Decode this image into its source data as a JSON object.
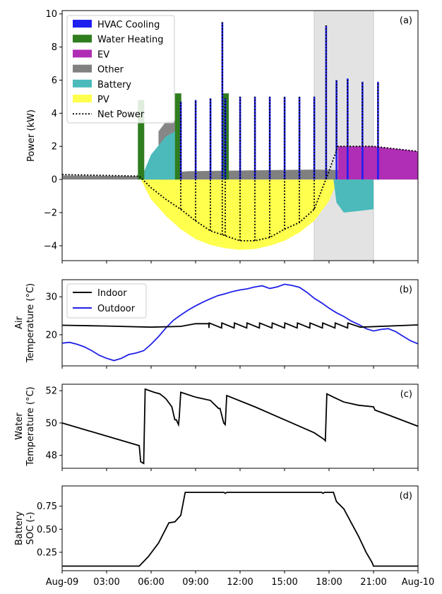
{
  "chart_data": [
    {
      "id": "a",
      "type": "area",
      "panel_label": "(a)",
      "ylabel": "Power (kW)",
      "xlabel": "",
      "xlim": [
        0,
        24
      ],
      "ylim": [
        -4.9,
        10.2
      ],
      "yticks": [
        -4,
        -2,
        0,
        2,
        4,
        6,
        8,
        10
      ],
      "shaded_span": [
        17,
        21
      ],
      "legend": [
        "HVAC Cooling",
        "Water Heating",
        "EV",
        "Other",
        "Battery",
        "PV",
        "Net Power"
      ],
      "colors": {
        "hvac": "#1f1ff0",
        "water": "#2e7d1e",
        "ev": "#b02db5",
        "other": "#808080",
        "battery": "#4cbaba",
        "pv": "#ffff4d",
        "net": "#000000",
        "span": "#e3e3e3"
      },
      "series": [
        {
          "name": "Other",
          "x": [
            0,
            5.25,
            6,
            8.5,
            17,
            24
          ],
          "values": [
            0.25,
            0.2,
            0.3,
            0.5,
            0.6,
            0.5
          ]
        },
        {
          "name": "Battery",
          "x": [
            5.3,
            6,
            7,
            7.8,
            18.3,
            18.5,
            19,
            20,
            21
          ],
          "values": [
            0.0,
            1.5,
            2.6,
            3.0,
            0.0,
            -1.4,
            -2.0,
            -1.9,
            -1.8
          ]
        },
        {
          "name": "PV",
          "x": [
            5.3,
            6,
            7,
            8,
            9,
            10,
            11,
            12,
            13,
            14,
            15,
            16,
            17,
            18,
            18.6
          ],
          "values": [
            0.0,
            -1.2,
            -2.2,
            -3.0,
            -3.6,
            -3.95,
            -4.15,
            -4.25,
            -4.2,
            -4.0,
            -3.7,
            -3.2,
            -2.5,
            -1.3,
            0.0
          ]
        },
        {
          "name": "HVAC Cooling",
          "x": [
            8,
            9,
            10,
            10.8,
            11,
            12,
            13,
            14,
            15,
            16,
            17,
            17.8,
            18.5,
            19.25,
            20.25,
            21.3
          ],
          "values": [
            4.7,
            4.8,
            4.9,
            9.5,
            4.9,
            5.0,
            5.0,
            5.0,
            5.0,
            5.0,
            5.0,
            9.3,
            6.0,
            6.1,
            5.9,
            5.9
          ]
        },
        {
          "name": "Water Heating",
          "x": [
            5.3,
            7.8,
            11.0
          ],
          "values": [
            4.8,
            5.2,
            5.2
          ]
        },
        {
          "name": "EV",
          "x": [
            18.6,
            21,
            22,
            23,
            24
          ],
          "values": [
            2.0,
            2.0,
            1.9,
            1.8,
            1.7
          ]
        },
        {
          "name": "Net Power",
          "x": [
            0,
            5.2,
            6,
            7,
            8,
            9,
            10,
            11,
            12,
            13,
            14,
            15,
            16,
            17,
            18,
            18.6,
            21,
            24
          ],
          "values": [
            0.3,
            0.2,
            -0.5,
            -1.2,
            -1.8,
            -2.5,
            -3.1,
            -3.4,
            -3.7,
            -3.7,
            -3.5,
            -3.0,
            -2.6,
            -1.8,
            0.5,
            2.0,
            2.0,
            1.7
          ]
        }
      ]
    },
    {
      "id": "b",
      "type": "line",
      "panel_label": "(b)",
      "ylabel": [
        "Air",
        "Temperature (°C)"
      ],
      "xlim": [
        0,
        24
      ],
      "ylim": [
        11.8,
        34.5
      ],
      "yticks": [
        20,
        30
      ],
      "legend": [
        "Indoor",
        "Outdoor"
      ],
      "colors": {
        "indoor": "#000000",
        "outdoor": "#2020e8"
      },
      "series": [
        {
          "name": "Outdoor",
          "x": [
            0,
            0.5,
            1,
            1.5,
            2,
            2.5,
            3,
            3.5,
            4,
            4.5,
            5,
            5.5,
            6,
            6.5,
            7,
            7.5,
            8,
            8.5,
            9,
            9.5,
            10,
            10.5,
            11,
            11.5,
            12,
            12.5,
            13,
            13.5,
            14,
            14.5,
            15,
            15.5,
            16,
            16.5,
            17,
            17.5,
            18,
            18.5,
            19,
            19.5,
            20,
            20.5,
            21,
            21.5,
            22,
            22.5,
            23,
            23.5,
            24
          ],
          "values": [
            17.8,
            18.0,
            17.5,
            16.8,
            15.8,
            14.6,
            13.8,
            13.2,
            13.8,
            14.8,
            15.2,
            15.8,
            17.5,
            19.5,
            21.8,
            23.8,
            25.2,
            26.5,
            27.6,
            28.6,
            29.5,
            30.3,
            30.8,
            31.4,
            31.8,
            32.1,
            32.6,
            32.9,
            32.2,
            32.6,
            33.3,
            33.0,
            32.5,
            31.2,
            29.6,
            28.4,
            27.0,
            25.8,
            24.8,
            23.6,
            22.7,
            21.6,
            21.0,
            21.4,
            21.6,
            20.8,
            19.6,
            18.4,
            17.6
          ]
        },
        {
          "name": "Indoor",
          "x": [
            0,
            3,
            6,
            8,
            9,
            9.9
          ],
          "values": [
            22.5,
            22.3,
            22.0,
            22.2,
            22.9,
            22.9
          ],
          "sawtooth": {
            "start": 9.9,
            "end": 20.1,
            "period": 0.85,
            "high": 23.1,
            "low": 21.8
          },
          "x_tail": [
            20.1,
            24
          ],
          "values_tail": [
            22.0,
            22.6
          ]
        }
      ]
    },
    {
      "id": "c",
      "type": "line",
      "panel_label": "(c)",
      "ylabel": [
        "Water",
        "Temperature (°C)"
      ],
      "xlim": [
        0,
        24
      ],
      "ylim": [
        47.2,
        52.4
      ],
      "yticks": [
        48,
        50,
        52
      ],
      "series": [
        {
          "name": "Water Temperature",
          "x": [
            0,
            5.2,
            5.3,
            5.5,
            5.6,
            6.2,
            6.6,
            7.0,
            7.4,
            7.6,
            7.7,
            7.85,
            7.9,
            8.0,
            9.0,
            10.0,
            10.55,
            10.65,
            10.9,
            11.0,
            11.1,
            13.0,
            15.0,
            17.0,
            17.65,
            17.75,
            17.85,
            18.3,
            19.0,
            20.0,
            21.0,
            21.1,
            22.0,
            24
          ],
          "values": [
            50.0,
            48.6,
            47.6,
            47.5,
            52.1,
            51.9,
            51.8,
            51.5,
            51.0,
            50.2,
            50.2,
            49.9,
            50.4,
            51.9,
            51.6,
            51.4,
            50.9,
            50.9,
            50.0,
            49.9,
            51.7,
            51.0,
            50.2,
            49.4,
            49.0,
            48.9,
            51.8,
            51.6,
            51.3,
            51.1,
            51.0,
            50.8,
            50.5,
            49.8
          ]
        }
      ]
    },
    {
      "id": "d",
      "type": "line",
      "panel_label": "(d)",
      "ylabel": [
        "Battery",
        "SOC (-)"
      ],
      "xlim": [
        0,
        24
      ],
      "ylim": [
        0.05,
        0.97
      ],
      "yticks": [
        0.25,
        0.5,
        0.75
      ],
      "xticks": [
        "Aug-09",
        "03:00",
        "06:00",
        "09:00",
        "12:00",
        "15:00",
        "18:00",
        "21:00",
        "Aug-10"
      ],
      "series": [
        {
          "name": "Battery SOC",
          "x": [
            0,
            5.2,
            5.8,
            6.5,
            7.2,
            7.6,
            8.0,
            8.3,
            9.0,
            10.9,
            11.0,
            11.1,
            17.5,
            17.6,
            17.7,
            18.3,
            18.5,
            19.0,
            19.5,
            20.0,
            20.5,
            20.9,
            21.0,
            24
          ],
          "values": [
            0.1,
            0.1,
            0.2,
            0.35,
            0.57,
            0.58,
            0.65,
            0.9,
            0.9,
            0.9,
            0.89,
            0.9,
            0.9,
            0.89,
            0.9,
            0.9,
            0.8,
            0.72,
            0.57,
            0.42,
            0.25,
            0.14,
            0.1,
            0.1
          ]
        }
      ]
    }
  ]
}
